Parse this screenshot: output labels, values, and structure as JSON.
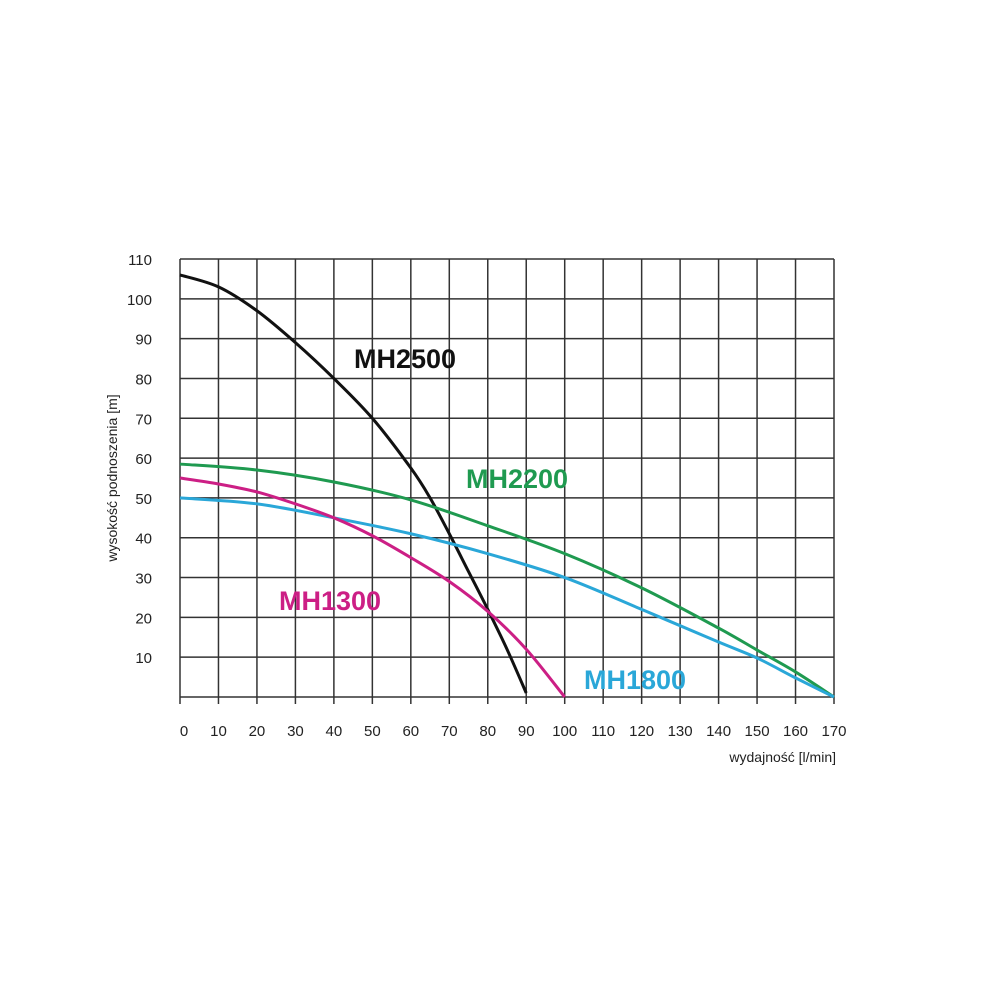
{
  "chart_data": {
    "type": "line",
    "xlabel": "wydajność [l/min]",
    "ylabel": "wysokość podnoszenia [m]",
    "xlim": [
      0,
      170
    ],
    "ylim": [
      0,
      110
    ],
    "x_ticks": [
      0,
      10,
      20,
      30,
      40,
      50,
      60,
      70,
      80,
      90,
      100,
      110,
      120,
      130,
      140,
      150,
      160,
      170
    ],
    "y_ticks": [
      10,
      20,
      30,
      40,
      50,
      60,
      70,
      80,
      90,
      100,
      110
    ],
    "grid": true,
    "legend": "inline labels",
    "series": [
      {
        "name": "MH2500",
        "color": "#111111",
        "x": [
          0,
          10,
          20,
          30,
          40,
          50,
          60,
          65,
          70,
          75,
          80,
          85,
          90
        ],
        "y": [
          106,
          103,
          97,
          89,
          80,
          70,
          57.5,
          50,
          41,
          31.5,
          22,
          12,
          1
        ]
      },
      {
        "name": "MH2200",
        "color": "#1f9a50",
        "x": [
          0,
          20,
          40,
          60,
          80,
          100,
          120,
          140,
          150,
          160,
          170
        ],
        "y": [
          58.5,
          57,
          54,
          49.5,
          43,
          36,
          27.4,
          17.3,
          11.8,
          6.3,
          0
        ]
      },
      {
        "name": "MH1800",
        "color": "#2aa7d8",
        "x": [
          0,
          20,
          40,
          60,
          80,
          100,
          120,
          140,
          150,
          160,
          170
        ],
        "y": [
          50,
          48.5,
          45,
          41,
          36,
          30,
          22,
          13.8,
          9.8,
          4.8,
          0
        ]
      },
      {
        "name": "MH1300",
        "color": "#cc1f85",
        "x": [
          0,
          10,
          20,
          30,
          40,
          50,
          60,
          70,
          80,
          90,
          100
        ],
        "y": [
          55,
          53.5,
          51.5,
          48.5,
          45,
          40.5,
          35,
          29,
          21.5,
          12,
          0
        ]
      }
    ],
    "labels": [
      {
        "text": "MH2500",
        "series": "MH2500"
      },
      {
        "text": "MH2200",
        "series": "MH2200"
      },
      {
        "text": "MH1300",
        "series": "MH1300"
      },
      {
        "text": "MH1800",
        "series": "MH1800"
      }
    ]
  }
}
